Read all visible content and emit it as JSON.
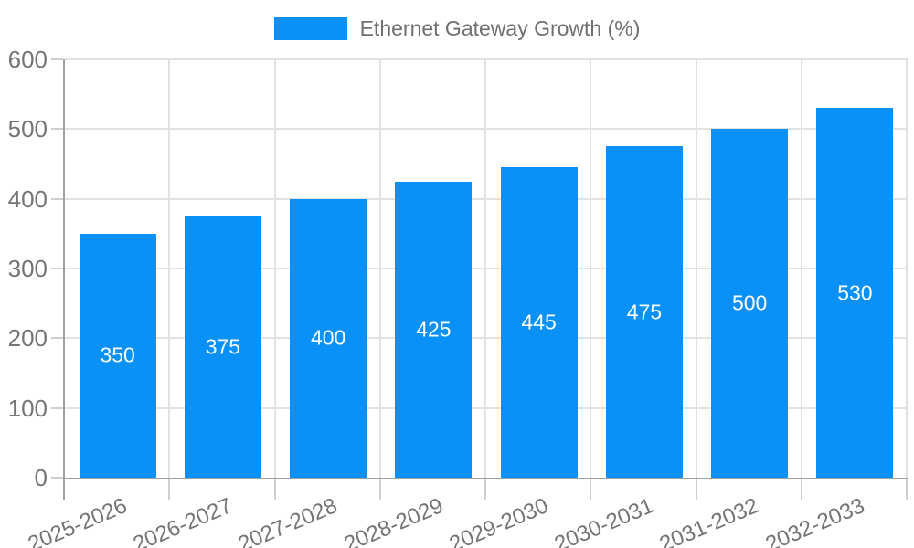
{
  "chart_data": {
    "type": "bar",
    "title": "Ethernet Gateway Growth (%)",
    "legend": {
      "position": "top",
      "label": "Ethernet Gateway Growth (%)"
    },
    "categories": [
      "2025-2026",
      "2026-2027",
      "2027-2028",
      "2028-2029",
      "2029-2030",
      "2030-2031",
      "2031-2032",
      "2032-2033"
    ],
    "series": [
      {
        "name": "Ethernet Gateway Growth (%)",
        "values": [
          350,
          375,
          400,
          425,
          445,
          475,
          500,
          530
        ]
      }
    ],
    "xlabel": "",
    "ylabel": "",
    "ylim": [
      0,
      600
    ],
    "ytick_step": 100,
    "yticks": [
      0,
      100,
      200,
      300,
      400,
      500,
      600
    ],
    "grid": true,
    "value_labels_position": "inside-center",
    "x_tick_rotation_deg": -23,
    "colors": {
      "bar": "#0991f7",
      "grid": "#e2e2e2",
      "axis": "#a0a0a0",
      "tick_mark": "#cfcfcf",
      "tick_text": "#757575",
      "legend_text": "#707070",
      "value_label_text": "#ffffff",
      "background": "#ffffff"
    }
  }
}
